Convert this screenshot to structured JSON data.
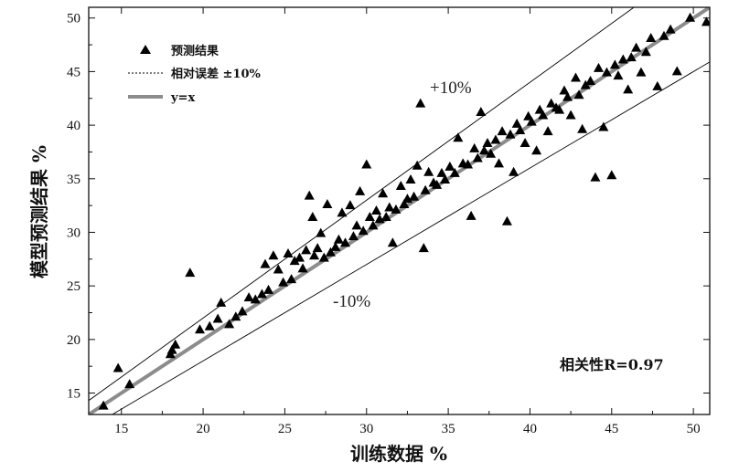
{
  "chart_data": {
    "type": "scatter",
    "xlabel": "训练数据 %",
    "ylabel": "模型预测结果 %",
    "xlim": [
      13,
      51
    ],
    "ylim": [
      13,
      51
    ],
    "xticks": [
      "15",
      "20",
      "25",
      "30",
      "35",
      "40",
      "45",
      "50"
    ],
    "yticks": [
      "15",
      "20",
      "25",
      "30",
      "35",
      "40",
      "45",
      "50"
    ],
    "grid": false,
    "legend_position": "top-left",
    "legend": {
      "points": "预测结果",
      "error_band": "相对误差 ±10%",
      "fit_line": "y=x"
    },
    "annotations": {
      "upper": "+10%",
      "lower": "-10%",
      "correlation": "相关性R=0.97"
    },
    "colors": {
      "points": "#000000",
      "fit_line": "#8c8c8c",
      "band": "#000000"
    },
    "series": [
      {
        "name": "预测结果",
        "points": [
          [
            13.9,
            13.8
          ],
          [
            14.8,
            17.3
          ],
          [
            15.5,
            15.8
          ],
          [
            18.0,
            18.6
          ],
          [
            18.1,
            19.0
          ],
          [
            18.3,
            19.5
          ],
          [
            19.2,
            26.2
          ],
          [
            19.8,
            20.9
          ],
          [
            20.4,
            21.2
          ],
          [
            20.9,
            21.9
          ],
          [
            21.1,
            23.4
          ],
          [
            21.6,
            21.4
          ],
          [
            22.0,
            22.1
          ],
          [
            22.4,
            22.6
          ],
          [
            22.8,
            23.9
          ],
          [
            23.2,
            23.7
          ],
          [
            23.6,
            24.2
          ],
          [
            23.8,
            27.0
          ],
          [
            24.0,
            24.6
          ],
          [
            24.3,
            27.8
          ],
          [
            24.6,
            26.5
          ],
          [
            24.9,
            25.3
          ],
          [
            25.2,
            28.0
          ],
          [
            25.4,
            25.6
          ],
          [
            25.6,
            27.3
          ],
          [
            25.9,
            27.6
          ],
          [
            26.1,
            26.6
          ],
          [
            26.3,
            28.3
          ],
          [
            26.5,
            33.4
          ],
          [
            26.7,
            31.4
          ],
          [
            26.8,
            27.8
          ],
          [
            27.0,
            28.5
          ],
          [
            27.2,
            29.9
          ],
          [
            27.4,
            27.6
          ],
          [
            27.6,
            32.6
          ],
          [
            27.8,
            28.1
          ],
          [
            28.1,
            28.6
          ],
          [
            28.3,
            29.3
          ],
          [
            28.5,
            31.8
          ],
          [
            28.7,
            29.0
          ],
          [
            29.0,
            32.5
          ],
          [
            29.2,
            29.6
          ],
          [
            29.4,
            30.6
          ],
          [
            29.6,
            33.8
          ],
          [
            29.8,
            30.1
          ],
          [
            30.0,
            36.3
          ],
          [
            30.2,
            31.4
          ],
          [
            30.4,
            30.6
          ],
          [
            30.6,
            32.0
          ],
          [
            30.8,
            31.2
          ],
          [
            31.0,
            33.6
          ],
          [
            31.2,
            31.4
          ],
          [
            31.4,
            32.3
          ],
          [
            31.6,
            29.0
          ],
          [
            31.8,
            32.1
          ],
          [
            32.1,
            34.3
          ],
          [
            32.3,
            32.6
          ],
          [
            32.5,
            33.1
          ],
          [
            32.7,
            34.9
          ],
          [
            32.9,
            33.3
          ],
          [
            33.1,
            36.2
          ],
          [
            33.3,
            42.0
          ],
          [
            33.5,
            28.5
          ],
          [
            33.6,
            33.9
          ],
          [
            33.8,
            35.6
          ],
          [
            34.1,
            34.6
          ],
          [
            34.3,
            34.4
          ],
          [
            34.6,
            35.5
          ],
          [
            34.8,
            34.9
          ],
          [
            35.1,
            36.1
          ],
          [
            35.4,
            35.5
          ],
          [
            35.6,
            38.8
          ],
          [
            35.9,
            36.4
          ],
          [
            36.2,
            36.3
          ],
          [
            36.4,
            31.5
          ],
          [
            36.6,
            37.8
          ],
          [
            36.8,
            36.9
          ],
          [
            37.0,
            41.2
          ],
          [
            37.2,
            37.6
          ],
          [
            37.4,
            38.3
          ],
          [
            37.6,
            37.3
          ],
          [
            37.9,
            38.6
          ],
          [
            38.1,
            36.4
          ],
          [
            38.3,
            39.4
          ],
          [
            38.6,
            31.0
          ],
          [
            38.8,
            39.1
          ],
          [
            39.0,
            35.6
          ],
          [
            39.2,
            40.1
          ],
          [
            39.4,
            39.5
          ],
          [
            39.7,
            38.3
          ],
          [
            39.9,
            40.8
          ],
          [
            40.1,
            40.3
          ],
          [
            40.4,
            37.6
          ],
          [
            40.6,
            41.4
          ],
          [
            40.8,
            40.9
          ],
          [
            41.1,
            39.4
          ],
          [
            41.3,
            42.0
          ],
          [
            41.6,
            41.6
          ],
          [
            41.8,
            41.4
          ],
          [
            42.1,
            43.2
          ],
          [
            42.3,
            42.6
          ],
          [
            42.5,
            40.9
          ],
          [
            42.8,
            44.4
          ],
          [
            43.0,
            42.8
          ],
          [
            43.2,
            39.6
          ],
          [
            43.4,
            43.7
          ],
          [
            43.7,
            44.1
          ],
          [
            44.0,
            35.1
          ],
          [
            44.2,
            45.3
          ],
          [
            44.5,
            39.8
          ],
          [
            44.7,
            44.9
          ],
          [
            45.0,
            35.3
          ],
          [
            45.2,
            45.6
          ],
          [
            45.4,
            44.6
          ],
          [
            45.7,
            46.1
          ],
          [
            46.0,
            43.3
          ],
          [
            46.2,
            46.3
          ],
          [
            46.5,
            47.2
          ],
          [
            46.8,
            44.9
          ],
          [
            47.1,
            46.8
          ],
          [
            47.4,
            48.1
          ],
          [
            47.8,
            43.6
          ],
          [
            48.2,
            48.3
          ],
          [
            48.6,
            48.9
          ],
          [
            49.0,
            45.0
          ],
          [
            49.8,
            50.0
          ],
          [
            50.8,
            49.6
          ]
        ]
      }
    ]
  }
}
